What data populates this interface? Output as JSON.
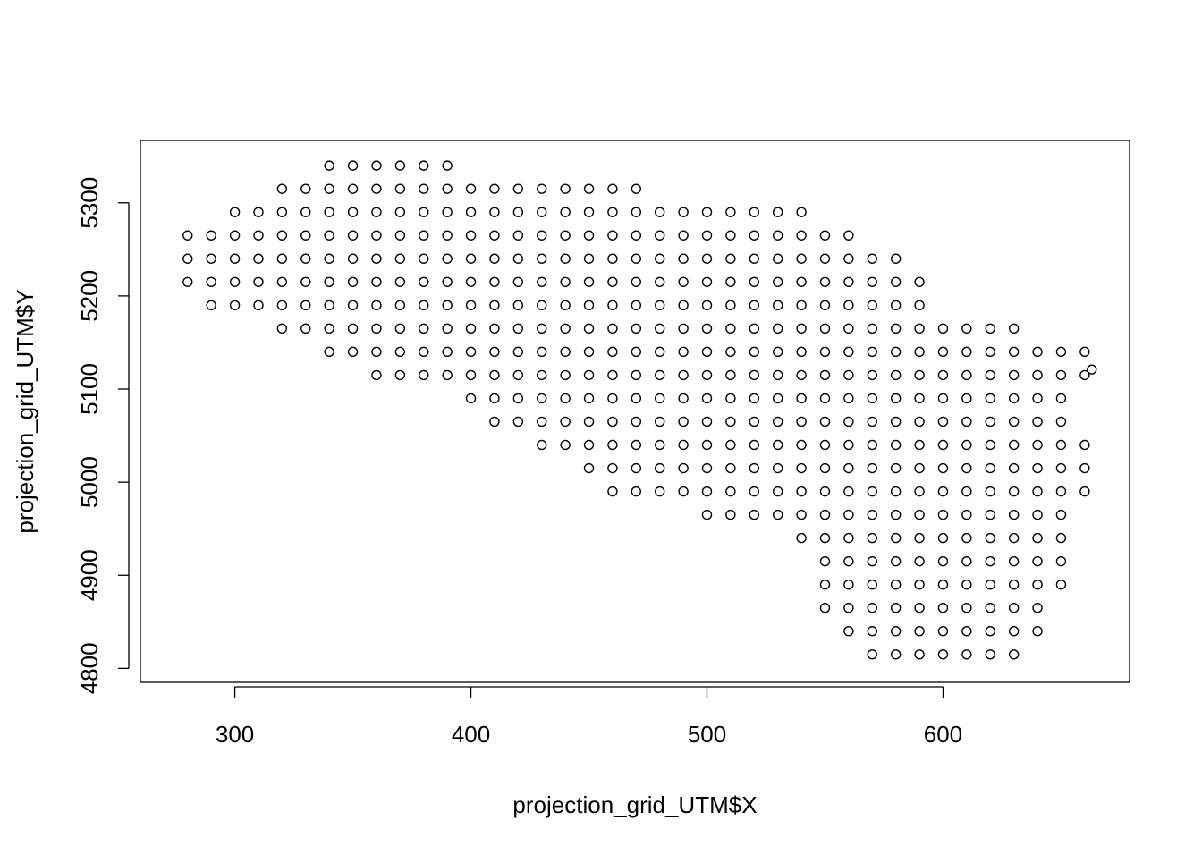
{
  "chart_data": {
    "type": "scatter",
    "x_label": "projection_grid_UTM$X",
    "y_label": "projection_grid_UTM$Y",
    "xlim": [
      260,
      679
    ],
    "ylim": [
      4785,
      5367
    ],
    "xticks": [
      300,
      400,
      500,
      600
    ],
    "yticks": [
      4800,
      4900,
      5000,
      5100,
      5200,
      5300
    ],
    "color": "#000000",
    "x": [
      340,
      350,
      360,
      370,
      380,
      390,
      320,
      330,
      340,
      350,
      360,
      370,
      380,
      390,
      400,
      410,
      420,
      430,
      440,
      450,
      460,
      470,
      300,
      310,
      320,
      330,
      340,
      350,
      360,
      370,
      380,
      390,
      400,
      410,
      420,
      430,
      440,
      450,
      460,
      470,
      480,
      490,
      500,
      510,
      520,
      530,
      540,
      280,
      290,
      300,
      310,
      320,
      330,
      340,
      350,
      360,
      370,
      380,
      390,
      400,
      410,
      420,
      430,
      440,
      450,
      460,
      470,
      480,
      490,
      500,
      510,
      520,
      530,
      540,
      550,
      560,
      280,
      290,
      300,
      310,
      320,
      330,
      340,
      350,
      360,
      370,
      380,
      390,
      400,
      410,
      420,
      430,
      440,
      450,
      460,
      470,
      480,
      490,
      500,
      510,
      520,
      530,
      540,
      550,
      560,
      570,
      580,
      280,
      290,
      300,
      310,
      320,
      330,
      340,
      350,
      360,
      370,
      380,
      390,
      400,
      410,
      420,
      430,
      440,
      450,
      460,
      470,
      480,
      490,
      500,
      510,
      520,
      530,
      540,
      550,
      560,
      570,
      580,
      590,
      290,
      300,
      310,
      320,
      330,
      340,
      350,
      360,
      370,
      380,
      390,
      400,
      410,
      420,
      430,
      440,
      450,
      460,
      470,
      480,
      490,
      500,
      510,
      520,
      530,
      540,
      550,
      560,
      570,
      580,
      590,
      320,
      330,
      340,
      350,
      360,
      370,
      380,
      390,
      400,
      410,
      420,
      430,
      440,
      450,
      460,
      470,
      480,
      490,
      500,
      510,
      520,
      530,
      540,
      550,
      560,
      570,
      580,
      590,
      600,
      610,
      620,
      630,
      340,
      350,
      360,
      370,
      380,
      390,
      400,
      410,
      420,
      430,
      440,
      450,
      460,
      470,
      480,
      490,
      500,
      510,
      520,
      530,
      540,
      550,
      560,
      570,
      580,
      590,
      600,
      610,
      620,
      630,
      640,
      650,
      660,
      360,
      370,
      380,
      390,
      400,
      410,
      420,
      430,
      440,
      450,
      460,
      470,
      480,
      490,
      500,
      510,
      520,
      530,
      540,
      550,
      560,
      570,
      580,
      590,
      600,
      610,
      620,
      630,
      640,
      650,
      660,
      400,
      410,
      420,
      430,
      440,
      450,
      460,
      470,
      480,
      490,
      500,
      510,
      520,
      530,
      540,
      550,
      560,
      570,
      580,
      590,
      600,
      610,
      620,
      630,
      640,
      650,
      410,
      420,
      430,
      440,
      450,
      460,
      470,
      480,
      490,
      500,
      510,
      520,
      530,
      540,
      550,
      560,
      570,
      580,
      590,
      600,
      610,
      620,
      630,
      640,
      650,
      430,
      440,
      450,
      460,
      470,
      480,
      490,
      500,
      510,
      520,
      530,
      540,
      550,
      560,
      570,
      580,
      590,
      600,
      610,
      620,
      630,
      640,
      650,
      660,
      450,
      460,
      470,
      480,
      490,
      500,
      510,
      520,
      530,
      540,
      550,
      560,
      570,
      580,
      590,
      600,
      610,
      620,
      630,
      640,
      650,
      660,
      460,
      470,
      480,
      490,
      500,
      510,
      520,
      530,
      540,
      550,
      560,
      570,
      580,
      590,
      600,
      610,
      620,
      630,
      640,
      650,
      660,
      500,
      510,
      520,
      530,
      540,
      550,
      560,
      570,
      580,
      590,
      600,
      610,
      620,
      630,
      640,
      650,
      540,
      550,
      560,
      570,
      580,
      590,
      600,
      610,
      620,
      630,
      640,
      650,
      550,
      560,
      570,
      580,
      590,
      600,
      610,
      620,
      630,
      640,
      650,
      550,
      560,
      570,
      580,
      590,
      600,
      610,
      620,
      630,
      640,
      650,
      550,
      560,
      570,
      580,
      590,
      600,
      610,
      620,
      630,
      640,
      560,
      570,
      580,
      590,
      600,
      610,
      620,
      630,
      640,
      570,
      580,
      590,
      600,
      610,
      620,
      630,
      663
    ],
    "y": [
      5340,
      5340,
      5340,
      5340,
      5340,
      5340,
      5315,
      5315,
      5315,
      5315,
      5315,
      5315,
      5315,
      5315,
      5315,
      5315,
      5315,
      5315,
      5315,
      5315,
      5315,
      5315,
      5290,
      5290,
      5290,
      5290,
      5290,
      5290,
      5290,
      5290,
      5290,
      5290,
      5290,
      5290,
      5290,
      5290,
      5290,
      5290,
      5290,
      5290,
      5290,
      5290,
      5290,
      5290,
      5290,
      5290,
      5290,
      5265,
      5265,
      5265,
      5265,
      5265,
      5265,
      5265,
      5265,
      5265,
      5265,
      5265,
      5265,
      5265,
      5265,
      5265,
      5265,
      5265,
      5265,
      5265,
      5265,
      5265,
      5265,
      5265,
      5265,
      5265,
      5265,
      5265,
      5265,
      5265,
      5240,
      5240,
      5240,
      5240,
      5240,
      5240,
      5240,
      5240,
      5240,
      5240,
      5240,
      5240,
      5240,
      5240,
      5240,
      5240,
      5240,
      5240,
      5240,
      5240,
      5240,
      5240,
      5240,
      5240,
      5240,
      5240,
      5240,
      5240,
      5240,
      5240,
      5240,
      5215,
      5215,
      5215,
      5215,
      5215,
      5215,
      5215,
      5215,
      5215,
      5215,
      5215,
      5215,
      5215,
      5215,
      5215,
      5215,
      5215,
      5215,
      5215,
      5215,
      5215,
      5215,
      5215,
      5215,
      5215,
      5215,
      5215,
      5215,
      5215,
      5215,
      5215,
      5215,
      5190,
      5190,
      5190,
      5190,
      5190,
      5190,
      5190,
      5190,
      5190,
      5190,
      5190,
      5190,
      5190,
      5190,
      5190,
      5190,
      5190,
      5190,
      5190,
      5190,
      5190,
      5190,
      5190,
      5190,
      5190,
      5190,
      5190,
      5190,
      5190,
      5190,
      5190,
      5165,
      5165,
      5165,
      5165,
      5165,
      5165,
      5165,
      5165,
      5165,
      5165,
      5165,
      5165,
      5165,
      5165,
      5165,
      5165,
      5165,
      5165,
      5165,
      5165,
      5165,
      5165,
      5165,
      5165,
      5165,
      5165,
      5165,
      5165,
      5165,
      5165,
      5165,
      5165,
      5140,
      5140,
      5140,
      5140,
      5140,
      5140,
      5140,
      5140,
      5140,
      5140,
      5140,
      5140,
      5140,
      5140,
      5140,
      5140,
      5140,
      5140,
      5140,
      5140,
      5140,
      5140,
      5140,
      5140,
      5140,
      5140,
      5140,
      5140,
      5140,
      5140,
      5140,
      5140,
      5140,
      5115,
      5115,
      5115,
      5115,
      5115,
      5115,
      5115,
      5115,
      5115,
      5115,
      5115,
      5115,
      5115,
      5115,
      5115,
      5115,
      5115,
      5115,
      5115,
      5115,
      5115,
      5115,
      5115,
      5115,
      5115,
      5115,
      5115,
      5115,
      5115,
      5115,
      5115,
      5090,
      5090,
      5090,
      5090,
      5090,
      5090,
      5090,
      5090,
      5090,
      5090,
      5090,
      5090,
      5090,
      5090,
      5090,
      5090,
      5090,
      5090,
      5090,
      5090,
      5090,
      5090,
      5090,
      5090,
      5090,
      5090,
      5065,
      5065,
      5065,
      5065,
      5065,
      5065,
      5065,
      5065,
      5065,
      5065,
      5065,
      5065,
      5065,
      5065,
      5065,
      5065,
      5065,
      5065,
      5065,
      5065,
      5065,
      5065,
      5065,
      5065,
      5065,
      5040,
      5040,
      5040,
      5040,
      5040,
      5040,
      5040,
      5040,
      5040,
      5040,
      5040,
      5040,
      5040,
      5040,
      5040,
      5040,
      5040,
      5040,
      5040,
      5040,
      5040,
      5040,
      5040,
      5040,
      5015,
      5015,
      5015,
      5015,
      5015,
      5015,
      5015,
      5015,
      5015,
      5015,
      5015,
      5015,
      5015,
      5015,
      5015,
      5015,
      5015,
      5015,
      5015,
      5015,
      5015,
      5015,
      4990,
      4990,
      4990,
      4990,
      4990,
      4990,
      4990,
      4990,
      4990,
      4990,
      4990,
      4990,
      4990,
      4990,
      4990,
      4990,
      4990,
      4990,
      4990,
      4990,
      4990,
      4965,
      4965,
      4965,
      4965,
      4965,
      4965,
      4965,
      4965,
      4965,
      4965,
      4965,
      4965,
      4965,
      4965,
      4965,
      4965,
      4940,
      4940,
      4940,
      4940,
      4940,
      4940,
      4940,
      4940,
      4940,
      4940,
      4940,
      4940,
      4915,
      4915,
      4915,
      4915,
      4915,
      4915,
      4915,
      4915,
      4915,
      4915,
      4915,
      4890,
      4890,
      4890,
      4890,
      4890,
      4890,
      4890,
      4890,
      4890,
      4890,
      4890,
      4865,
      4865,
      4865,
      4865,
      4865,
      4865,
      4865,
      4865,
      4865,
      4865,
      4840,
      4840,
      4840,
      4840,
      4840,
      4840,
      4840,
      4840,
      4840,
      4815,
      4815,
      4815,
      4815,
      4815,
      4815,
      4815,
      5121
    ]
  }
}
